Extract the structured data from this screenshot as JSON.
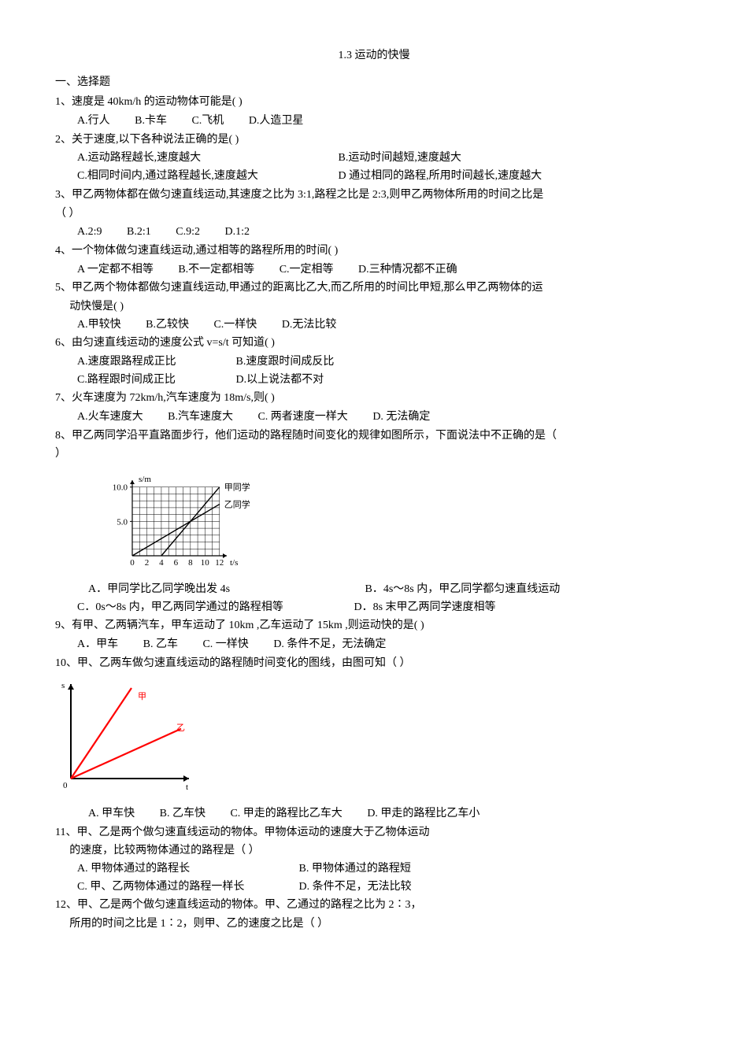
{
  "title": "1.3  运动的快慢",
  "section1_heading": "一、选择题",
  "q1": {
    "stem": "1、速度是 40km/h 的运动物体可能是(    )",
    "opts": {
      "A": "A.行人",
      "B": "B.卡车",
      "C": "C.飞机",
      "D": "D.人造卫星"
    }
  },
  "q2": {
    "stem": "2、关于速度,以下各种说法正确的是(    )",
    "A": "A.运动路程越长,速度越大",
    "B": "B.运动时间越短,速度越大",
    "C": "C.相同时间内,通过路程越长,速度越大",
    "D": "D 通过相同的路程,所用时间越长,速度越大"
  },
  "q3": {
    "stem": "3、甲乙两物体都在做匀速直线运动,其速度之比为 3:1,路程之比是 2:3,则甲乙两物体所用的时间之比是",
    "stem2": "  （     ）",
    "opts": {
      "A": "A.2:9",
      "B": "B.2:1",
      "C": "C.9:2",
      "D": "D.1:2"
    }
  },
  "q4": {
    "stem": "4、一个物体做匀速直线运动,通过相等的路程所用的时间(    )",
    "opts": {
      "A": "A 一定都不相等",
      "B": "B.不一定都相等",
      "C": "C.一定相等",
      "D": "D.三种情况都不正确"
    }
  },
  "q5": {
    "stem": "5、甲乙两个物体都做匀速直线运动,甲通过的距离比乙大,而乙所用的时间比甲短,那么甲乙两物体的运",
    "stem2": "动快慢是(    )",
    "opts": {
      "A": "A.甲较快",
      "B": "B.乙较快",
      "C": "C.一样快",
      "D": "D.无法比较"
    }
  },
  "q6": {
    "stem": "6、由匀速直线运动的速度公式 v=s/t 可知道(    )",
    "A": "A.速度跟路程成正比",
    "B": "B.速度跟时间成反比",
    "C": "C.路程跟时间成正比",
    "D": "D.以上说法都不对"
  },
  "q7": {
    "stem": "7、火车速度为 72km/h,汽车速度为 18m/s,则(   )",
    "opts": {
      "A": "A.火车速度大",
      "B": "B.汽车速度大",
      "C": "C. 两者速度一样大",
      "D": "D. 无法确定"
    }
  },
  "q8": {
    "stem": "8、甲乙两同学沿平直路面步行，他们运动的路程随时间变化的规律如图所示，下面说法中不正确的是（",
    "stem2": "）",
    "chart": {
      "type": "line",
      "y_axis_label": "s/m",
      "x_axis_label": "t/s",
      "x_ticks": [
        "0",
        "2",
        "4",
        "6",
        "8",
        "10",
        "12"
      ],
      "y_ticks": [
        "5.0",
        "10.0"
      ],
      "label_jia": "甲同学",
      "label_yi": "乙同学",
      "grid_color": "#000000",
      "line_color": "#000000",
      "tick_fontsize": 11,
      "jia_line": {
        "x1": 4,
        "y1": 0,
        "x2": 12,
        "y2": 10
      },
      "yi_line": {
        "x1": 0,
        "y1": 0,
        "x2": 12,
        "y2": 7.5
      },
      "x_domain": [
        0,
        13
      ],
      "y_domain": [
        0,
        11
      ]
    },
    "A": "A．甲同学比乙同学晚出发 4s",
    "B": "B．4s～8s 内，甲乙同学都匀速直线运动",
    "C": "C．0s～8s 内，甲乙两同学通过的路程相等",
    "D": "D．8s 末甲乙两同学速度相等"
  },
  "q9": {
    "stem": "9、有甲、乙两辆汽车，甲车运动了 10km ,乙车运动了 15km ,则运动快的是(     )",
    "opts": {
      "A": "A．甲车",
      "B": "B. 乙车",
      "C": "C. 一样快",
      "D": "D. 条件不足，无法确定"
    }
  },
  "q10": {
    "stem": "10、甲、乙两车做匀速直线运动的路程随时间变化的图线，由图可知（     ）",
    "chart": {
      "type": "line",
      "y_axis_label": "s",
      "x_axis_label": "t",
      "label_jia": "甲",
      "label_yi": "乙",
      "axis_color": "#000000",
      "jia_color": "#ff0000",
      "yi_color": "#ff0000",
      "label_color": "#ff0000",
      "jia_line_end": {
        "x": 0.55,
        "y": 1.0
      },
      "yi_line_end": {
        "x": 1.0,
        "y": 0.55
      },
      "label_fontsize": 14
    },
    "opts": {
      "A": "A. 甲车快",
      "B": "B. 乙车快",
      "C": "C. 甲走的路程比乙车大",
      "D": "D. 甲走的路程比乙车小"
    }
  },
  "q11": {
    "stem": "11、甲、乙是两个做匀速直线运动的物体。甲物体运动的速度大于乙物体运动",
    "stem2": "的速度，比较两物体通过的路程是（   ）",
    "A": "A. 甲物体通过的路程长",
    "B": "B. 甲物体通过的路程短",
    "C": "C. 甲、乙两物体通过的路程一样长",
    "D": "D. 条件不足，无法比较"
  },
  "q12": {
    "stem": "12、甲、乙是两个做匀速直线运动的物体。甲、乙通过的路程之比为 2∶3，",
    "stem2": "所用的时间之比是 1∶2，则甲、乙的速度之比是（   ）"
  }
}
